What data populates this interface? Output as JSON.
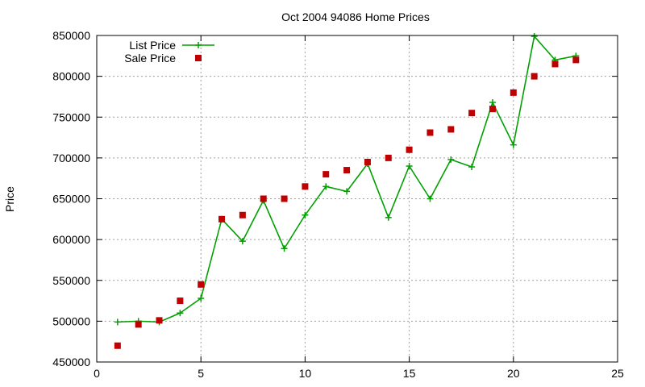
{
  "chart_data": {
    "type": "line",
    "title": "Oct 2004 94086 Home Prices",
    "xlabel": "",
    "ylabel": "Price",
    "xlim": [
      0,
      25
    ],
    "ylim": [
      450000,
      850000
    ],
    "x_ticks": [
      0,
      5,
      10,
      15,
      20,
      25
    ],
    "y_ticks": [
      450000,
      500000,
      550000,
      600000,
      650000,
      700000,
      750000,
      800000,
      850000
    ],
    "grid": true,
    "legend_position": "top-left",
    "x": [
      1,
      2,
      3,
      4,
      5,
      6,
      7,
      8,
      9,
      10,
      11,
      12,
      13,
      14,
      15,
      16,
      17,
      18,
      19,
      20,
      21,
      22,
      23
    ],
    "series": [
      {
        "name": "List Price",
        "style": "line-with-plus-markers",
        "color": "#00a000",
        "values": [
          499000,
          500000,
          499000,
          510000,
          528000,
          625000,
          598000,
          648000,
          589000,
          630000,
          665000,
          659000,
          693000,
          627000,
          690000,
          650000,
          698000,
          689000,
          768000,
          716000,
          849000,
          820000,
          825000
        ]
      },
      {
        "name": "Sale Price",
        "style": "square-markers",
        "color": "#c00000",
        "values": [
          470000,
          496000,
          501000,
          525000,
          545000,
          625000,
          630000,
          650000,
          650000,
          665000,
          680000,
          685000,
          695000,
          700000,
          710000,
          731000,
          735000,
          755000,
          760000,
          780000,
          800000,
          815000,
          820000
        ]
      }
    ]
  }
}
